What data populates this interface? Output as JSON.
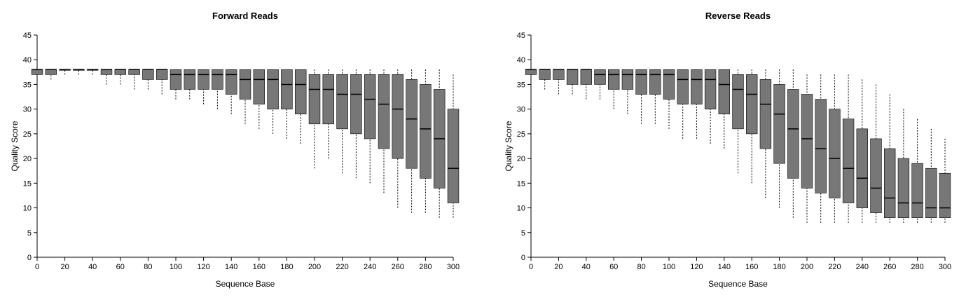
{
  "chart_data": [
    {
      "type": "boxplot",
      "title": "Forward Reads",
      "x_label": "Sequence Base",
      "y_label": "Quality Score",
      "xlim": [
        0,
        300
      ],
      "xticks": [
        0,
        20,
        40,
        60,
        80,
        100,
        120,
        140,
        160,
        180,
        200,
        220,
        240,
        260,
        280,
        300
      ],
      "ylim": [
        0,
        45
      ],
      "yticks": [
        0,
        5,
        10,
        15,
        20,
        25,
        30,
        35,
        40,
        45
      ],
      "x": [
        0,
        10,
        20,
        30,
        40,
        50,
        60,
        70,
        80,
        90,
        100,
        110,
        120,
        130,
        140,
        150,
        160,
        170,
        180,
        190,
        200,
        210,
        220,
        230,
        240,
        250,
        260,
        270,
        280,
        290,
        300
      ],
      "whislo": [
        36,
        36,
        37,
        37,
        37,
        35,
        35,
        34,
        34,
        33,
        32,
        32,
        31,
        30,
        29,
        27,
        26,
        25,
        24,
        23,
        18,
        20,
        17,
        16,
        15,
        13,
        10,
        9,
        9,
        8,
        8
      ],
      "q1": [
        37,
        37,
        38,
        38,
        38,
        37,
        37,
        37,
        36,
        36,
        34,
        34,
        34,
        34,
        33,
        32,
        31,
        30,
        30,
        29,
        27,
        27,
        26,
        25,
        24,
        22,
        20,
        18,
        16,
        14,
        11
      ],
      "med": [
        38,
        38,
        38,
        38,
        38,
        38,
        38,
        38,
        38,
        38,
        37,
        37,
        37,
        37,
        37,
        36,
        36,
        36,
        35,
        35,
        34,
        34,
        33,
        33,
        32,
        31,
        30,
        28,
        26,
        24,
        18
      ],
      "q3": [
        38,
        38,
        38,
        38,
        38,
        38,
        38,
        38,
        38,
        38,
        38,
        38,
        38,
        38,
        38,
        38,
        38,
        38,
        38,
        38,
        37,
        37,
        37,
        37,
        37,
        37,
        37,
        36,
        35,
        34,
        30
      ],
      "whishi": [
        38,
        38,
        38,
        38,
        38,
        38,
        38,
        38,
        38,
        38,
        38,
        38,
        38,
        38,
        38,
        38,
        38,
        38,
        38,
        38,
        38,
        38,
        38,
        38,
        38,
        38,
        38,
        38,
        38,
        38,
        37
      ]
    },
    {
      "type": "boxplot",
      "title": "Reverse Reads",
      "x_label": "Sequence Base",
      "y_label": "Quality Score",
      "xlim": [
        0,
        300
      ],
      "xticks": [
        0,
        20,
        40,
        60,
        80,
        100,
        120,
        140,
        160,
        180,
        200,
        220,
        240,
        260,
        280,
        300
      ],
      "ylim": [
        0,
        45
      ],
      "yticks": [
        0,
        5,
        10,
        15,
        20,
        25,
        30,
        35,
        40,
        45
      ],
      "x": [
        0,
        10,
        20,
        30,
        40,
        50,
        60,
        70,
        80,
        90,
        100,
        110,
        120,
        130,
        140,
        150,
        160,
        170,
        180,
        190,
        200,
        210,
        220,
        230,
        240,
        250,
        260,
        270,
        280,
        290,
        300
      ],
      "whislo": [
        35,
        34,
        33,
        33,
        32,
        32,
        30,
        29,
        27,
        27,
        26,
        24,
        24,
        23,
        22,
        17,
        15,
        12,
        10,
        8,
        7,
        7,
        7,
        7,
        7,
        7,
        7,
        7,
        7,
        7,
        7
      ],
      "q1": [
        37,
        36,
        36,
        35,
        35,
        35,
        34,
        34,
        33,
        33,
        32,
        31,
        31,
        30,
        29,
        26,
        25,
        22,
        19,
        16,
        14,
        13,
        12,
        11,
        10,
        9,
        8,
        8,
        8,
        8,
        8
      ],
      "med": [
        38,
        38,
        38,
        38,
        38,
        37,
        37,
        37,
        37,
        37,
        37,
        36,
        36,
        36,
        35,
        34,
        33,
        31,
        29,
        26,
        24,
        22,
        20,
        18,
        16,
        14,
        12,
        11,
        11,
        10,
        10
      ],
      "q3": [
        38,
        38,
        38,
        38,
        38,
        38,
        38,
        38,
        38,
        38,
        38,
        38,
        38,
        38,
        38,
        37,
        37,
        36,
        35,
        34,
        33,
        32,
        30,
        28,
        26,
        24,
        22,
        20,
        19,
        18,
        17
      ],
      "whishi": [
        38,
        38,
        38,
        38,
        38,
        38,
        38,
        38,
        38,
        38,
        38,
        38,
        38,
        38,
        38,
        38,
        38,
        38,
        38,
        38,
        37,
        37,
        37,
        37,
        36,
        35,
        33,
        30,
        28,
        26,
        24
      ]
    }
  ]
}
